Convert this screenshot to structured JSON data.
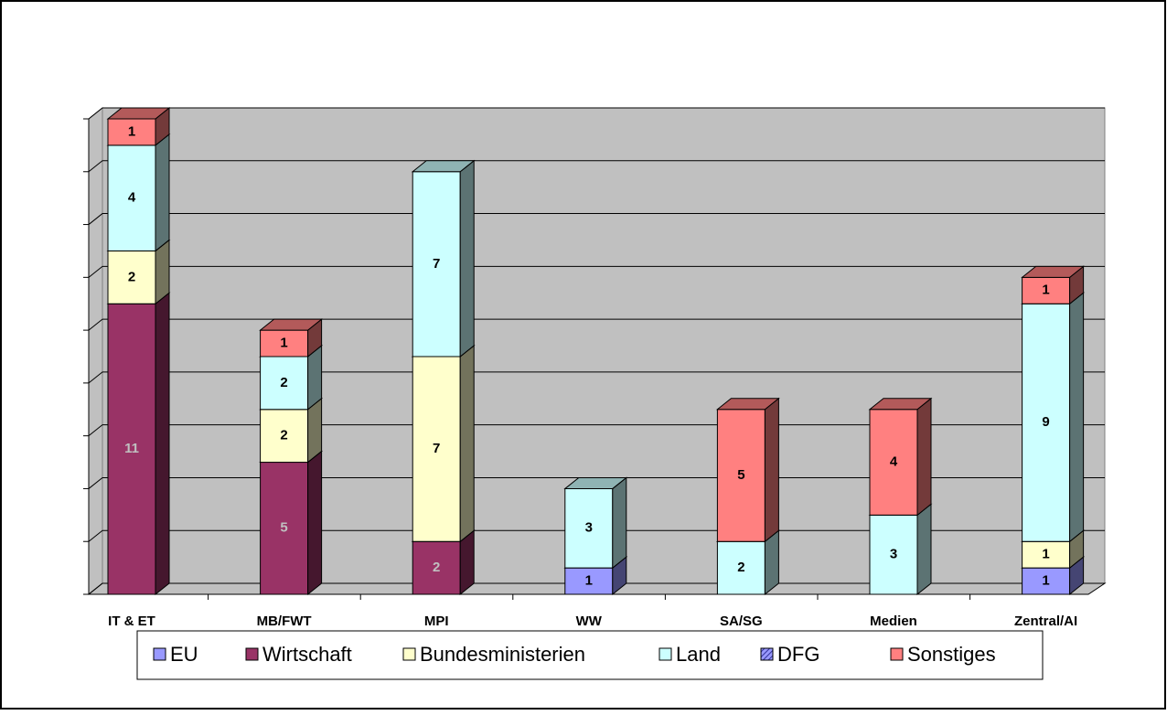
{
  "chart_data": {
    "type": "bar3d_stacked",
    "categories": [
      "IT & ET",
      "MB/FWT",
      "MPI",
      "WW",
      "SA/SG",
      "Medien",
      "Zentral/AI"
    ],
    "series": [
      {
        "name": "EU",
        "color": "#9999ff",
        "label_color": "#000000",
        "values": [
          null,
          null,
          null,
          1,
          null,
          null,
          1
        ]
      },
      {
        "name": "Wirtschaft",
        "color": "#993366",
        "label_color": "#c0c0c0",
        "values": [
          11,
          5,
          2,
          null,
          null,
          null,
          null
        ]
      },
      {
        "name": "Bundesministerien",
        "color": "#ffffcc",
        "label_color": "#000000",
        "values": [
          2,
          2,
          7,
          null,
          null,
          null,
          1
        ]
      },
      {
        "name": "Land",
        "color": "#ccffff",
        "label_color": "#000000",
        "values": [
          4,
          2,
          7,
          3,
          2,
          3,
          9
        ]
      },
      {
        "name": "DFG",
        "color": "#9999ff",
        "hatch": true,
        "label_color": "#000000",
        "values": [
          null,
          null,
          null,
          null,
          null,
          null,
          null
        ]
      },
      {
        "name": "Sonstiges",
        "color": "#ff8080",
        "label_color": "#000000",
        "values": [
          1,
          1,
          null,
          null,
          5,
          4,
          1
        ]
      }
    ],
    "ylim": [
      0,
      18
    ],
    "yticks": [
      0,
      2,
      4,
      6,
      8,
      10,
      12,
      14,
      16,
      18
    ],
    "grid": true,
    "legend": "bottom"
  }
}
